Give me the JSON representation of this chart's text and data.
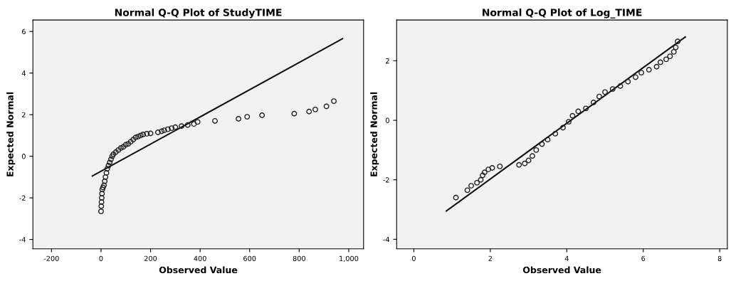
{
  "chart_data": [
    {
      "type": "scatter",
      "title": "Normal Q-Q Plot of StudyTIME",
      "xlabel": "Observed Value",
      "ylabel": "Expected Normal",
      "xlim": [
        -275,
        1060
      ],
      "ylim": [
        -4.45,
        6.55
      ],
      "xticks": [
        -200,
        0,
        200,
        400,
        600,
        800,
        {
          "value": 1000,
          "label": "1,000"
        }
      ],
      "yticks": [
        -4,
        -2,
        0,
        2,
        4,
        6
      ],
      "grid": false,
      "legend": false,
      "series": [
        {
          "marker": "circle",
          "color": "#222222",
          "x": [
            0,
            1,
            2,
            3,
            4,
            5,
            8,
            12,
            15,
            18,
            22,
            25,
            30,
            35,
            40,
            45,
            50,
            60,
            70,
            80,
            90,
            100,
            110,
            120,
            130,
            140,
            150,
            160,
            170,
            185,
            200,
            230,
            245,
            255,
            270,
            285,
            300,
            325,
            350,
            375,
            390,
            460,
            555,
            590,
            650,
            780,
            840,
            865,
            910,
            940
          ],
          "values": [
            -2.65,
            -2.4,
            -2.2,
            -2.0,
            -1.8,
            -1.6,
            -1.5,
            -1.4,
            -1.2,
            -1.0,
            -0.8,
            -0.6,
            -0.45,
            -0.3,
            -0.15,
            0,
            0.1,
            0.2,
            0.3,
            0.4,
            0.45,
            0.55,
            0.6,
            0.7,
            0.8,
            0.9,
            0.95,
            1.0,
            1.05,
            1.08,
            1.1,
            1.15,
            1.2,
            1.25,
            1.3,
            1.35,
            1.4,
            1.45,
            1.5,
            1.55,
            1.65,
            1.7,
            1.8,
            1.9,
            1.97,
            2.05,
            2.15,
            2.25,
            2.4,
            2.65
          ]
        },
        {
          "type": "line",
          "marker": "none",
          "line_style": "solid",
          "color": "#111111",
          "x": [
            -35,
            975
          ],
          "values": [
            -0.95,
            5.65
          ]
        }
      ]
    },
    {
      "type": "scatter",
      "title": "Normal Q-Q Plot of Log_TIME",
      "xlabel": "Observed Value",
      "ylabel": "Expected Normal",
      "xlim": [
        -0.45,
        8.2
      ],
      "ylim": [
        -4.32,
        3.37
      ],
      "xticks": [
        0,
        2,
        4,
        6,
        8
      ],
      "yticks": [
        -4,
        -2,
        0,
        2
      ],
      "grid": false,
      "legend": false,
      "series": [
        {
          "marker": "circle",
          "color": "#222222",
          "x": [
            1.1,
            1.4,
            1.5,
            1.65,
            1.75,
            1.8,
            1.85,
            1.95,
            2.05,
            2.25,
            2.75,
            2.9,
            3.0,
            3.1,
            3.2,
            3.35,
            3.5,
            3.7,
            3.9,
            4.05,
            4.15,
            4.3,
            4.5,
            4.7,
            4.85,
            5.0,
            5.2,
            5.4,
            5.6,
            5.8,
            5.95,
            6.15,
            6.35,
            6.45,
            6.6,
            6.7,
            6.8,
            6.85,
            6.9
          ],
          "values": [
            -2.6,
            -2.35,
            -2.2,
            -2.1,
            -2.0,
            -1.85,
            -1.75,
            -1.65,
            -1.6,
            -1.55,
            -1.5,
            -1.45,
            -1.35,
            -1.2,
            -1.0,
            -0.8,
            -0.65,
            -0.45,
            -0.25,
            -0.05,
            0.15,
            0.3,
            0.4,
            0.6,
            0.8,
            0.95,
            1.05,
            1.15,
            1.3,
            1.45,
            1.6,
            1.7,
            1.8,
            1.95,
            2.05,
            2.15,
            2.3,
            2.45,
            2.65
          ]
        },
        {
          "type": "line",
          "marker": "none",
          "line_style": "solid",
          "color": "#111111",
          "x": [
            0.85,
            7.1
          ],
          "values": [
            -3.05,
            2.8
          ]
        }
      ]
    }
  ]
}
